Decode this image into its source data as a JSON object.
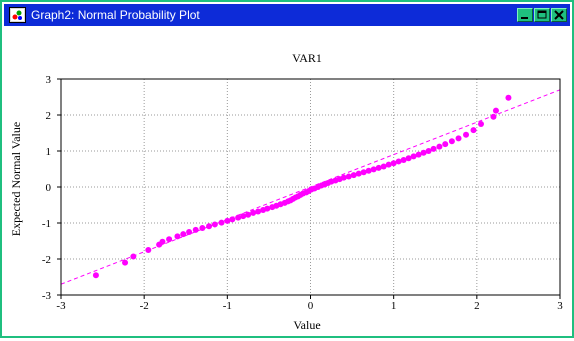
{
  "window": {
    "title": "Graph2: Normal Probability Plot",
    "icons": {
      "app": "graph-app-icon",
      "minimize": "minimize-icon",
      "maximize": "maximize-icon",
      "close": "close-icon"
    },
    "colors": {
      "titlebar": "#0d2bd8",
      "frame": "#1fbf7f"
    }
  },
  "chart_data": {
    "type": "scatter",
    "title": "VAR1",
    "xlabel": "Value",
    "ylabel": "Expected Normal Value",
    "xlim": [
      -3,
      3
    ],
    "ylim": [
      -3,
      3
    ],
    "xticks": [
      "-3",
      "-2",
      "-1",
      "0",
      "1",
      "2",
      "3"
    ],
    "yticks": [
      "3",
      "2",
      "1",
      "0",
      "-1",
      "-2",
      "-3"
    ],
    "grid": true,
    "marker_color": "#ff00ff",
    "reference_line": {
      "style": "dashed",
      "color": "#ff00ff",
      "from": [
        -3,
        -2.7
      ],
      "to": [
        3,
        2.7
      ]
    },
    "points": [
      [
        -2.58,
        -2.45
      ],
      [
        -2.23,
        -2.1
      ],
      [
        -2.13,
        -1.93
      ],
      [
        -1.95,
        -1.75
      ],
      [
        -1.82,
        -1.6
      ],
      [
        -1.78,
        -1.52
      ],
      [
        -1.7,
        -1.45
      ],
      [
        -1.6,
        -1.37
      ],
      [
        -1.53,
        -1.31
      ],
      [
        -1.46,
        -1.25
      ],
      [
        -1.38,
        -1.19
      ],
      [
        -1.3,
        -1.14
      ],
      [
        -1.22,
        -1.09
      ],
      [
        -1.15,
        -1.04
      ],
      [
        -1.07,
        -0.99
      ],
      [
        -1.0,
        -0.94
      ],
      [
        -0.94,
        -0.9
      ],
      [
        -0.87,
        -0.85
      ],
      [
        -0.81,
        -0.81
      ],
      [
        -0.75,
        -0.77
      ],
      [
        -0.69,
        -0.72
      ],
      [
        -0.63,
        -0.68
      ],
      [
        -0.57,
        -0.64
      ],
      [
        -0.52,
        -0.6
      ],
      [
        -0.46,
        -0.56
      ],
      [
        -0.41,
        -0.52
      ],
      [
        -0.36,
        -0.48
      ],
      [
        -0.31,
        -0.44
      ],
      [
        -0.27,
        -0.4
      ],
      [
        -0.24,
        -0.37
      ],
      [
        -0.21,
        -0.33
      ],
      [
        -0.18,
        -0.29
      ],
      [
        -0.15,
        -0.26
      ],
      [
        -0.12,
        -0.22
      ],
      [
        -0.09,
        -0.18
      ],
      [
        -0.05,
        -0.15
      ],
      [
        -0.02,
        -0.11
      ],
      [
        0.01,
        -0.07
      ],
      [
        0.05,
        -0.04
      ],
      [
        0.09,
        0.0
      ],
      [
        0.13,
        0.04
      ],
      [
        0.17,
        0.07
      ],
      [
        0.21,
        0.11
      ],
      [
        0.25,
        0.15
      ],
      [
        0.3,
        0.18
      ],
      [
        0.35,
        0.22
      ],
      [
        0.4,
        0.26
      ],
      [
        0.46,
        0.29
      ],
      [
        0.52,
        0.33
      ],
      [
        0.58,
        0.37
      ],
      [
        0.64,
        0.41
      ],
      [
        0.7,
        0.45
      ],
      [
        0.76,
        0.49
      ],
      [
        0.82,
        0.53
      ],
      [
        0.88,
        0.57
      ],
      [
        0.94,
        0.62
      ],
      [
        1.0,
        0.66
      ],
      [
        1.06,
        0.71
      ],
      [
        1.12,
        0.75
      ],
      [
        1.18,
        0.8
      ],
      [
        1.24,
        0.85
      ],
      [
        1.3,
        0.9
      ],
      [
        1.36,
        0.95
      ],
      [
        1.42,
        1.0
      ],
      [
        1.48,
        1.06
      ],
      [
        1.55,
        1.12
      ],
      [
        1.62,
        1.19
      ],
      [
        1.7,
        1.27
      ],
      [
        1.78,
        1.35
      ],
      [
        1.87,
        1.45
      ],
      [
        1.96,
        1.58
      ],
      [
        2.05,
        1.75
      ],
      [
        2.2,
        1.95
      ],
      [
        2.23,
        2.12
      ],
      [
        2.38,
        2.48
      ]
    ]
  }
}
